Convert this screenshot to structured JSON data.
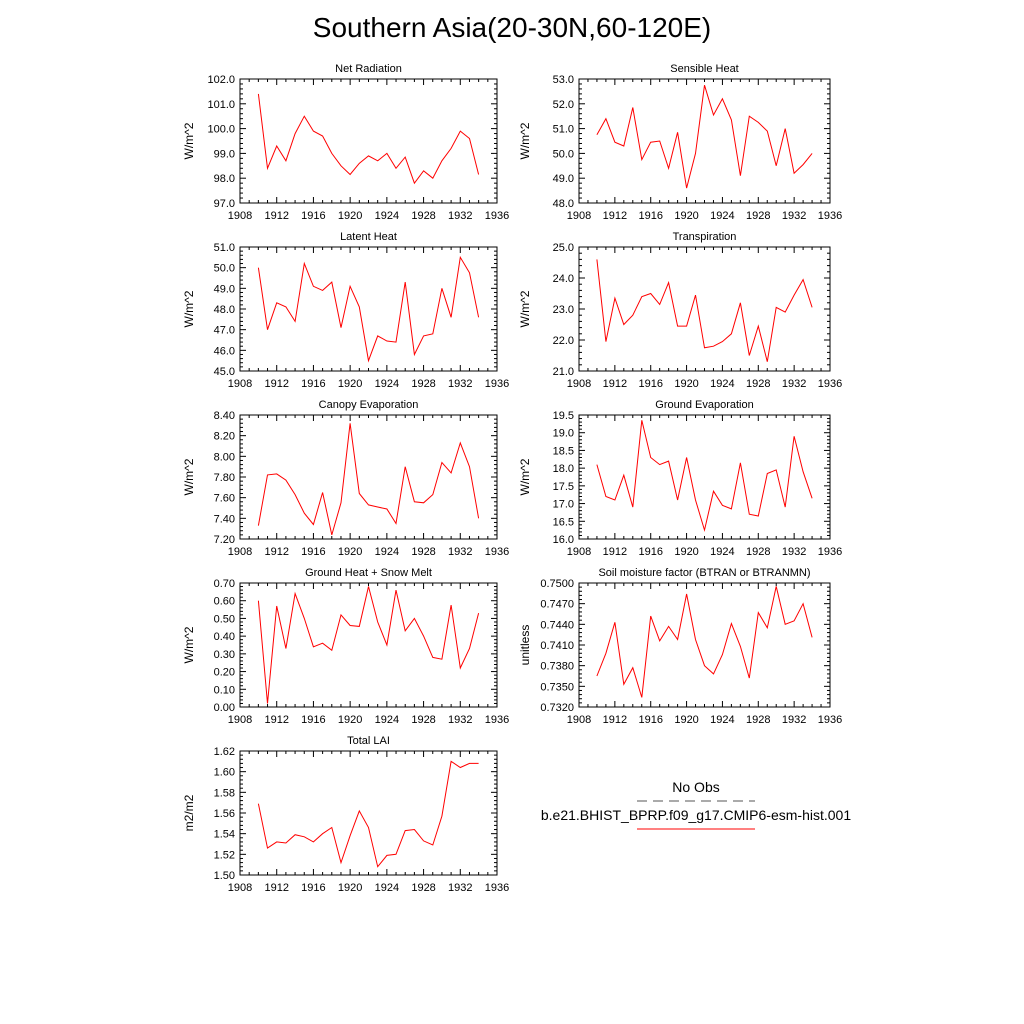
{
  "title": "Southern Asia(20-30N,60-120E)",
  "legend": {
    "obs_label": "No Obs",
    "obs_color": "#555555",
    "model_label": "b.e21.BHIST_BPRP.f09_g17.CMIP6-esm-hist.001",
    "model_color": "#ff0000"
  },
  "chart_data": [
    {
      "type": "line",
      "title": "Net Radiation",
      "ylabel": "W/m^2",
      "xlim": [
        1908,
        1936
      ],
      "xticks": [
        1908,
        1912,
        1916,
        1920,
        1924,
        1928,
        1932,
        1936
      ],
      "ylim": [
        97.0,
        102.0
      ],
      "yticks": [
        "97.0",
        "98.0",
        "99.0",
        "100.0",
        "101.0",
        "102.0"
      ],
      "series": [
        {
          "x": [
            1910,
            1911,
            1912,
            1913,
            1914,
            1915,
            1916,
            1917,
            1918,
            1919,
            1920,
            1921,
            1922,
            1923,
            1924,
            1925,
            1926,
            1927,
            1928,
            1929,
            1930,
            1931,
            1932,
            1933,
            1934
          ],
          "values": [
            101.4,
            98.4,
            99.3,
            98.7,
            99.8,
            100.5,
            99.9,
            99.7,
            99.0,
            98.5,
            98.15,
            98.6,
            98.9,
            98.7,
            99.0,
            98.4,
            98.85,
            97.8,
            98.3,
            98.0,
            98.7,
            99.2,
            99.9,
            99.6,
            98.15
          ]
        }
      ]
    },
    {
      "type": "line",
      "title": "Sensible Heat",
      "ylabel": "W/m^2",
      "xlim": [
        1908,
        1936
      ],
      "xticks": [
        1908,
        1912,
        1916,
        1920,
        1924,
        1928,
        1932,
        1936
      ],
      "ylim": [
        48.0,
        53.0
      ],
      "yticks": [
        "48.0",
        "49.0",
        "50.0",
        "51.0",
        "52.0",
        "53.0"
      ],
      "series": [
        {
          "x": [
            1910,
            1911,
            1912,
            1913,
            1914,
            1915,
            1916,
            1917,
            1918,
            1919,
            1920,
            1921,
            1922,
            1923,
            1924,
            1925,
            1926,
            1927,
            1928,
            1929,
            1930,
            1931,
            1932,
            1933,
            1934
          ],
          "values": [
            50.75,
            51.4,
            50.45,
            50.3,
            51.85,
            49.75,
            50.45,
            50.5,
            49.4,
            50.85,
            48.6,
            50.0,
            52.75,
            51.55,
            52.2,
            51.35,
            49.1,
            51.5,
            51.25,
            50.9,
            49.5,
            51.0,
            49.2,
            49.55,
            50.0
          ]
        }
      ]
    },
    {
      "type": "line",
      "title": "Latent Heat",
      "ylabel": "W/m^2",
      "xlim": [
        1908,
        1936
      ],
      "xticks": [
        1908,
        1912,
        1916,
        1920,
        1924,
        1928,
        1932,
        1936
      ],
      "ylim": [
        45.0,
        51.0
      ],
      "yticks": [
        "45.0",
        "46.0",
        "47.0",
        "48.0",
        "49.0",
        "50.0",
        "51.0"
      ],
      "series": [
        {
          "x": [
            1910,
            1911,
            1912,
            1913,
            1914,
            1915,
            1916,
            1917,
            1918,
            1919,
            1920,
            1921,
            1922,
            1923,
            1924,
            1925,
            1926,
            1927,
            1928,
            1929,
            1930,
            1931,
            1932,
            1933,
            1934
          ],
          "values": [
            50.0,
            47.0,
            48.3,
            48.1,
            47.4,
            50.2,
            49.1,
            48.9,
            49.3,
            47.1,
            49.1,
            48.1,
            45.5,
            46.7,
            46.45,
            46.4,
            49.3,
            45.8,
            46.7,
            46.8,
            49.0,
            47.6,
            50.5,
            49.75,
            47.6
          ]
        }
      ]
    },
    {
      "type": "line",
      "title": "Transpiration",
      "ylabel": "W/m^2",
      "xlim": [
        1908,
        1936
      ],
      "xticks": [
        1908,
        1912,
        1916,
        1920,
        1924,
        1928,
        1932,
        1936
      ],
      "ylim": [
        21.0,
        25.0
      ],
      "yticks": [
        "21.0",
        "22.0",
        "23.0",
        "24.0",
        "25.0"
      ],
      "series": [
        {
          "x": [
            1910,
            1911,
            1912,
            1913,
            1914,
            1915,
            1916,
            1917,
            1918,
            1919,
            1920,
            1921,
            1922,
            1923,
            1924,
            1925,
            1926,
            1927,
            1928,
            1929,
            1930,
            1931,
            1932,
            1933,
            1934
          ],
          "values": [
            24.6,
            21.95,
            23.35,
            22.5,
            22.8,
            23.4,
            23.5,
            23.15,
            23.85,
            22.45,
            22.45,
            23.45,
            21.75,
            21.8,
            21.95,
            22.2,
            23.2,
            21.5,
            22.45,
            21.3,
            23.05,
            22.9,
            23.45,
            23.95,
            23.05
          ]
        }
      ]
    },
    {
      "type": "line",
      "title": "Canopy Evaporation",
      "ylabel": "W/m^2",
      "xlim": [
        1908,
        1936
      ],
      "xticks": [
        1908,
        1912,
        1916,
        1920,
        1924,
        1928,
        1932,
        1936
      ],
      "ylim": [
        7.2,
        8.4
      ],
      "yticks": [
        "7.20",
        "7.40",
        "7.60",
        "7.80",
        "8.00",
        "8.20",
        "8.40"
      ],
      "series": [
        {
          "x": [
            1910,
            1911,
            1912,
            1913,
            1914,
            1915,
            1916,
            1917,
            1918,
            1919,
            1920,
            1921,
            1922,
            1923,
            1924,
            1925,
            1926,
            1927,
            1928,
            1929,
            1930,
            1931,
            1932,
            1933,
            1934
          ],
          "values": [
            7.33,
            7.82,
            7.83,
            7.77,
            7.63,
            7.45,
            7.34,
            7.65,
            7.24,
            7.55,
            8.32,
            7.64,
            7.53,
            7.51,
            7.49,
            7.35,
            7.9,
            7.56,
            7.55,
            7.63,
            7.94,
            7.84,
            8.13,
            7.9,
            7.4
          ]
        }
      ]
    },
    {
      "type": "line",
      "title": "Ground Evaporation",
      "ylabel": "W/m^2",
      "xlim": [
        1908,
        1936
      ],
      "xticks": [
        1908,
        1912,
        1916,
        1920,
        1924,
        1928,
        1932,
        1936
      ],
      "ylim": [
        16.0,
        19.5
      ],
      "yticks": [
        "16.0",
        "16.5",
        "17.0",
        "17.5",
        "18.0",
        "18.5",
        "19.0",
        "19.5"
      ],
      "series": [
        {
          "x": [
            1910,
            1911,
            1912,
            1913,
            1914,
            1915,
            1916,
            1917,
            1918,
            1919,
            1920,
            1921,
            1922,
            1923,
            1924,
            1925,
            1926,
            1927,
            1928,
            1929,
            1930,
            1931,
            1932,
            1933,
            1934
          ],
          "values": [
            18.1,
            17.2,
            17.1,
            17.8,
            16.9,
            19.35,
            18.3,
            18.1,
            18.2,
            17.1,
            18.3,
            17.1,
            16.25,
            17.35,
            16.95,
            16.85,
            18.15,
            16.7,
            16.65,
            17.85,
            17.95,
            16.9,
            18.9,
            17.9,
            17.15
          ]
        }
      ]
    },
    {
      "type": "line",
      "title": "Ground Heat + Snow Melt",
      "ylabel": "W/m^2",
      "xlim": [
        1908,
        1936
      ],
      "xticks": [
        1908,
        1912,
        1916,
        1920,
        1924,
        1928,
        1932,
        1936
      ],
      "ylim": [
        0.0,
        0.7
      ],
      "yticks": [
        "0.00",
        "0.10",
        "0.20",
        "0.30",
        "0.40",
        "0.50",
        "0.60",
        "0.70"
      ],
      "series": [
        {
          "x": [
            1910,
            1911,
            1912,
            1913,
            1914,
            1915,
            1916,
            1917,
            1918,
            1919,
            1920,
            1921,
            1922,
            1923,
            1924,
            1925,
            1926,
            1927,
            1928,
            1929,
            1930,
            1931,
            1932,
            1933,
            1934
          ],
          "values": [
            0.6,
            0.02,
            0.57,
            0.33,
            0.64,
            0.5,
            0.34,
            0.36,
            0.32,
            0.52,
            0.46,
            0.455,
            0.68,
            0.48,
            0.35,
            0.66,
            0.43,
            0.5,
            0.4,
            0.28,
            0.27,
            0.575,
            0.22,
            0.33,
            0.53
          ]
        }
      ]
    },
    {
      "type": "line",
      "title": "Soil moisture factor (BTRAN or BTRANMN)",
      "ylabel": "unitless",
      "xlim": [
        1908,
        1936
      ],
      "xticks": [
        1908,
        1912,
        1916,
        1920,
        1924,
        1928,
        1932,
        1936
      ],
      "ylim": [
        0.732,
        0.75
      ],
      "yticks": [
        "0.7320",
        "0.7350",
        "0.7380",
        "0.7410",
        "0.7440",
        "0.7470",
        "0.7500"
      ],
      "series": [
        {
          "x": [
            1910,
            1911,
            1912,
            1913,
            1914,
            1915,
            1916,
            1917,
            1918,
            1919,
            1920,
            1921,
            1922,
            1923,
            1924,
            1925,
            1926,
            1927,
            1928,
            1929,
            1930,
            1931,
            1932,
            1933,
            1934
          ],
          "values": [
            0.7365,
            0.7398,
            0.7443,
            0.7353,
            0.7377,
            0.7334,
            0.7452,
            0.7416,
            0.7437,
            0.7418,
            0.7484,
            0.7418,
            0.738,
            0.7368,
            0.7396,
            0.7441,
            0.7408,
            0.7362,
            0.7457,
            0.7435,
            0.7495,
            0.744,
            0.7445,
            0.747,
            0.7421
          ]
        }
      ]
    },
    {
      "type": "line",
      "title": "Total LAI",
      "ylabel": "m2/m2",
      "xlim": [
        1908,
        1936
      ],
      "xticks": [
        1908,
        1912,
        1916,
        1920,
        1924,
        1928,
        1932,
        1936
      ],
      "ylim": [
        1.5,
        1.62
      ],
      "yticks": [
        "1.50",
        "1.52",
        "1.54",
        "1.56",
        "1.58",
        "1.60",
        "1.62"
      ],
      "series": [
        {
          "x": [
            1910,
            1911,
            1912,
            1913,
            1914,
            1915,
            1916,
            1917,
            1918,
            1919,
            1920,
            1921,
            1922,
            1923,
            1924,
            1925,
            1926,
            1927,
            1928,
            1929,
            1930,
            1931,
            1932,
            1933,
            1934
          ],
          "values": [
            1.569,
            1.526,
            1.532,
            1.531,
            1.539,
            1.537,
            1.532,
            1.54,
            1.546,
            1.512,
            1.538,
            1.562,
            1.546,
            1.508,
            1.519,
            1.52,
            1.543,
            1.544,
            1.533,
            1.529,
            1.557,
            1.61,
            1.604,
            1.608,
            1.608
          ]
        }
      ]
    }
  ]
}
